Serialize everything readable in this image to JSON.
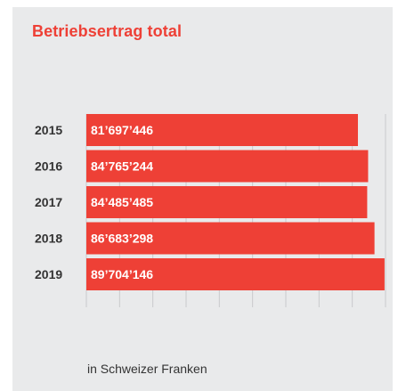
{
  "chart_data": {
    "type": "bar",
    "orientation": "horizontal",
    "title": "Betriebsertrag total",
    "note": "in Schweizer Franken",
    "categories": [
      "2015",
      "2016",
      "2017",
      "2018",
      "2019"
    ],
    "values": [
      81697446,
      84765244,
      84485485,
      86683298,
      89704146
    ],
    "value_labels": [
      "81’697’446",
      "84’765’244",
      "84’485’485",
      "86’683’298",
      "89’704’146"
    ],
    "xlim": [
      0,
      90000000
    ],
    "bar_color": "#ee4036",
    "grid": true
  }
}
